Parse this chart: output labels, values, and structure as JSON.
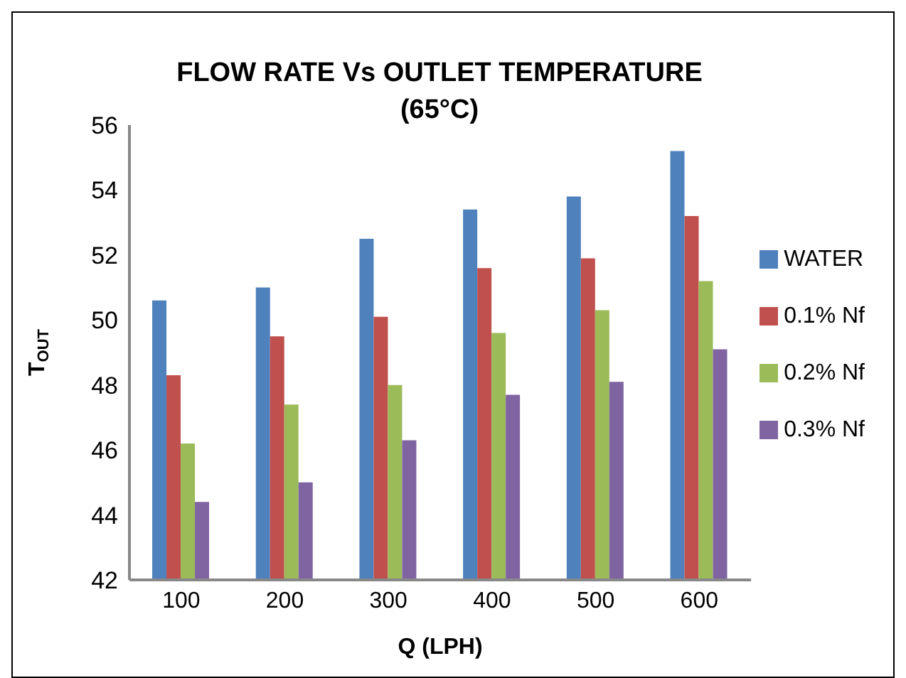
{
  "chart_data": {
    "type": "bar",
    "title": "FLOW RATE Vs OUTLET TEMPERATURE\n(65°C)",
    "xlabel": "Q (LPH)",
    "ylabel": "T$_{OUT}$",
    "categories": [
      "100",
      "200",
      "300",
      "400",
      "500",
      "600"
    ],
    "series": [
      {
        "name": "WATER",
        "color": "#4f81bd",
        "values": [
          50.6,
          51.0,
          52.5,
          53.4,
          53.8,
          55.2
        ]
      },
      {
        "name": "0.1% Nf",
        "color": "#c0504d",
        "values": [
          48.3,
          49.5,
          50.1,
          51.6,
          51.9,
          53.2
        ]
      },
      {
        "name": "0.2% Nf",
        "color": "#9bbb59",
        "values": [
          46.2,
          47.4,
          48.0,
          49.6,
          50.3,
          51.2
        ]
      },
      {
        "name": "0.3% Nf",
        "color": "#8064a2",
        "values": [
          44.4,
          45.0,
          46.3,
          47.7,
          48.1,
          49.1
        ]
      }
    ],
    "ylim": [
      42,
      56
    ],
    "yticks": [
      42,
      44,
      46,
      48,
      50,
      52,
      54,
      56
    ],
    "grid": false,
    "legend": "right"
  }
}
